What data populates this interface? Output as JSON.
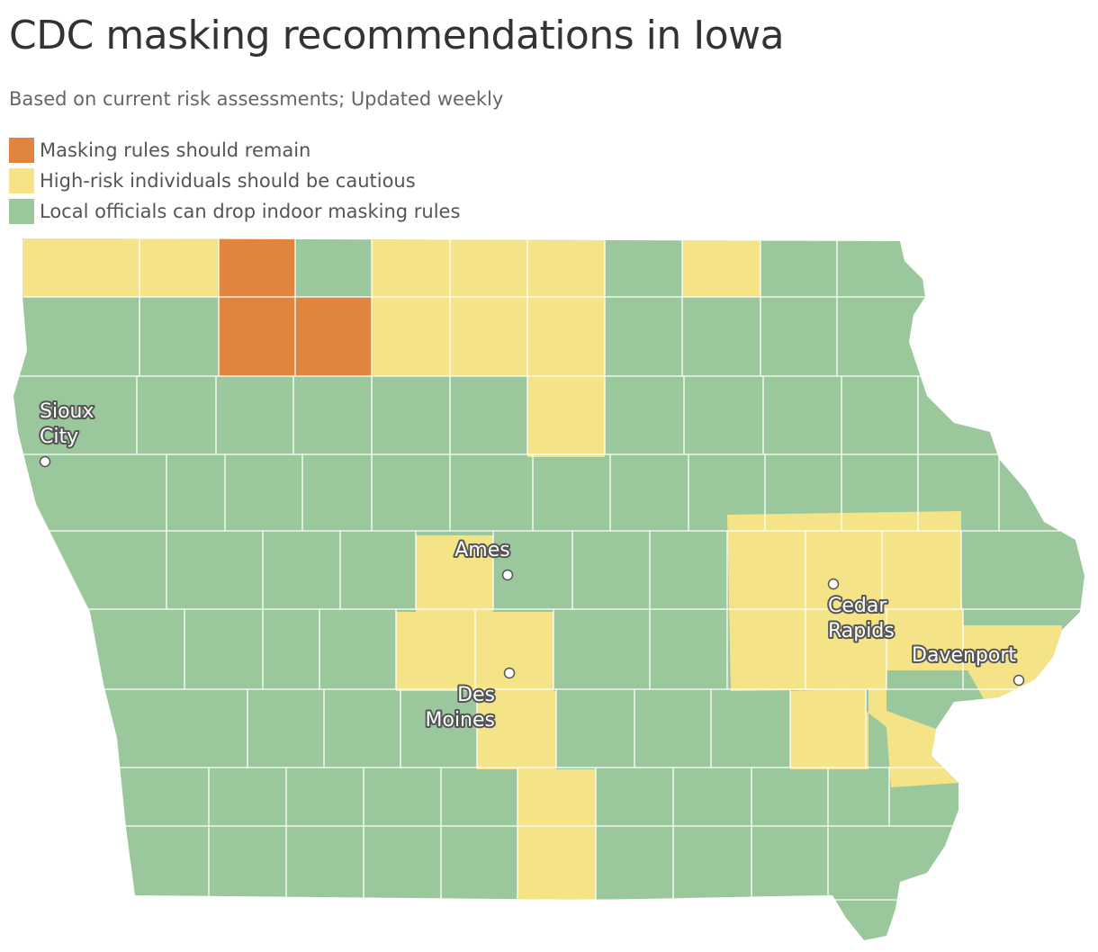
{
  "header": {
    "title": "CDC masking recommendations in Iowa",
    "subtitle": "Based on current risk assessments; Updated weekly"
  },
  "legend": [
    {
      "label": "Masking rules should remain",
      "color": "#e08440"
    },
    {
      "label": "High-risk individuals should be cautious",
      "color": "#f5e387"
    },
    {
      "label": "Local officials can drop indoor masking rules",
      "color": "#9ac89c"
    }
  ],
  "cities": [
    {
      "lines": [
        "Sioux",
        "City"
      ]
    },
    {
      "lines": [
        "Ames"
      ]
    },
    {
      "lines": [
        "Des",
        "Moines"
      ]
    },
    {
      "lines": [
        "Cedar",
        "Rapids"
      ]
    },
    {
      "lines": [
        "Davenport"
      ]
    }
  ]
}
